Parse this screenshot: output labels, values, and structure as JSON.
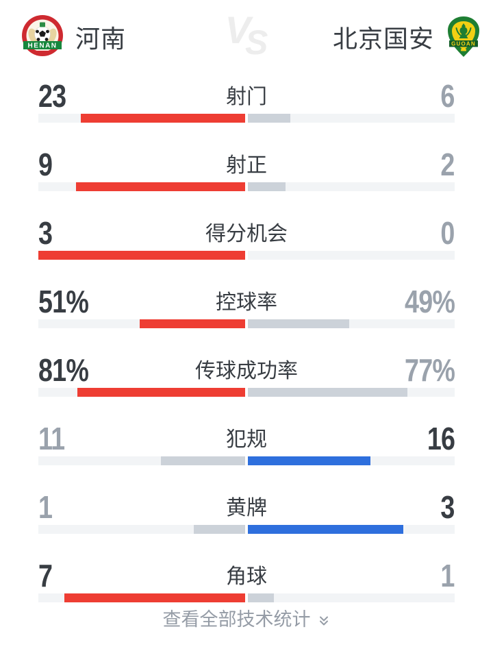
{
  "header": {
    "home": {
      "name": "河南",
      "crest_text": "HENAN"
    },
    "away": {
      "name": "北京国安",
      "crest_text": "GUOAN"
    },
    "vs": "VS"
  },
  "chart_data": {
    "type": "bar",
    "layout": "diverging duel bars filled outward from center; larger value highlighted (home=red, away=blue), smaller value gray; % rows filled as pct/100, count rows as value/(home+away)",
    "categories": [
      "射门",
      "射正",
      "得分机会",
      "控球率",
      "传球成功率",
      "犯规",
      "黄牌",
      "角球"
    ],
    "series": [
      {
        "name": "河南",
        "side": "home",
        "values": [
          "23",
          "9",
          "3",
          "51%",
          "81%",
          "11",
          "1",
          "7"
        ]
      },
      {
        "name": "北京国安",
        "side": "away",
        "values": [
          "6",
          "2",
          "0",
          "49%",
          "77%",
          "16",
          "3",
          "1"
        ]
      }
    ],
    "legend_position": "none",
    "grid": false
  },
  "footer": {
    "label": "查看全部技术统计",
    "chevron_icon": "double-chevron-down"
  },
  "colors": {
    "home_accent": "#ee3d33",
    "away_accent": "#2e6fdd",
    "trail_bar": "#ccd2d9",
    "bar_track": "#f2f4f6",
    "value_lead": "#383d43",
    "value_trail": "#9aa2ac",
    "vs": "#ededed",
    "footer_text": "#959ca6"
  }
}
